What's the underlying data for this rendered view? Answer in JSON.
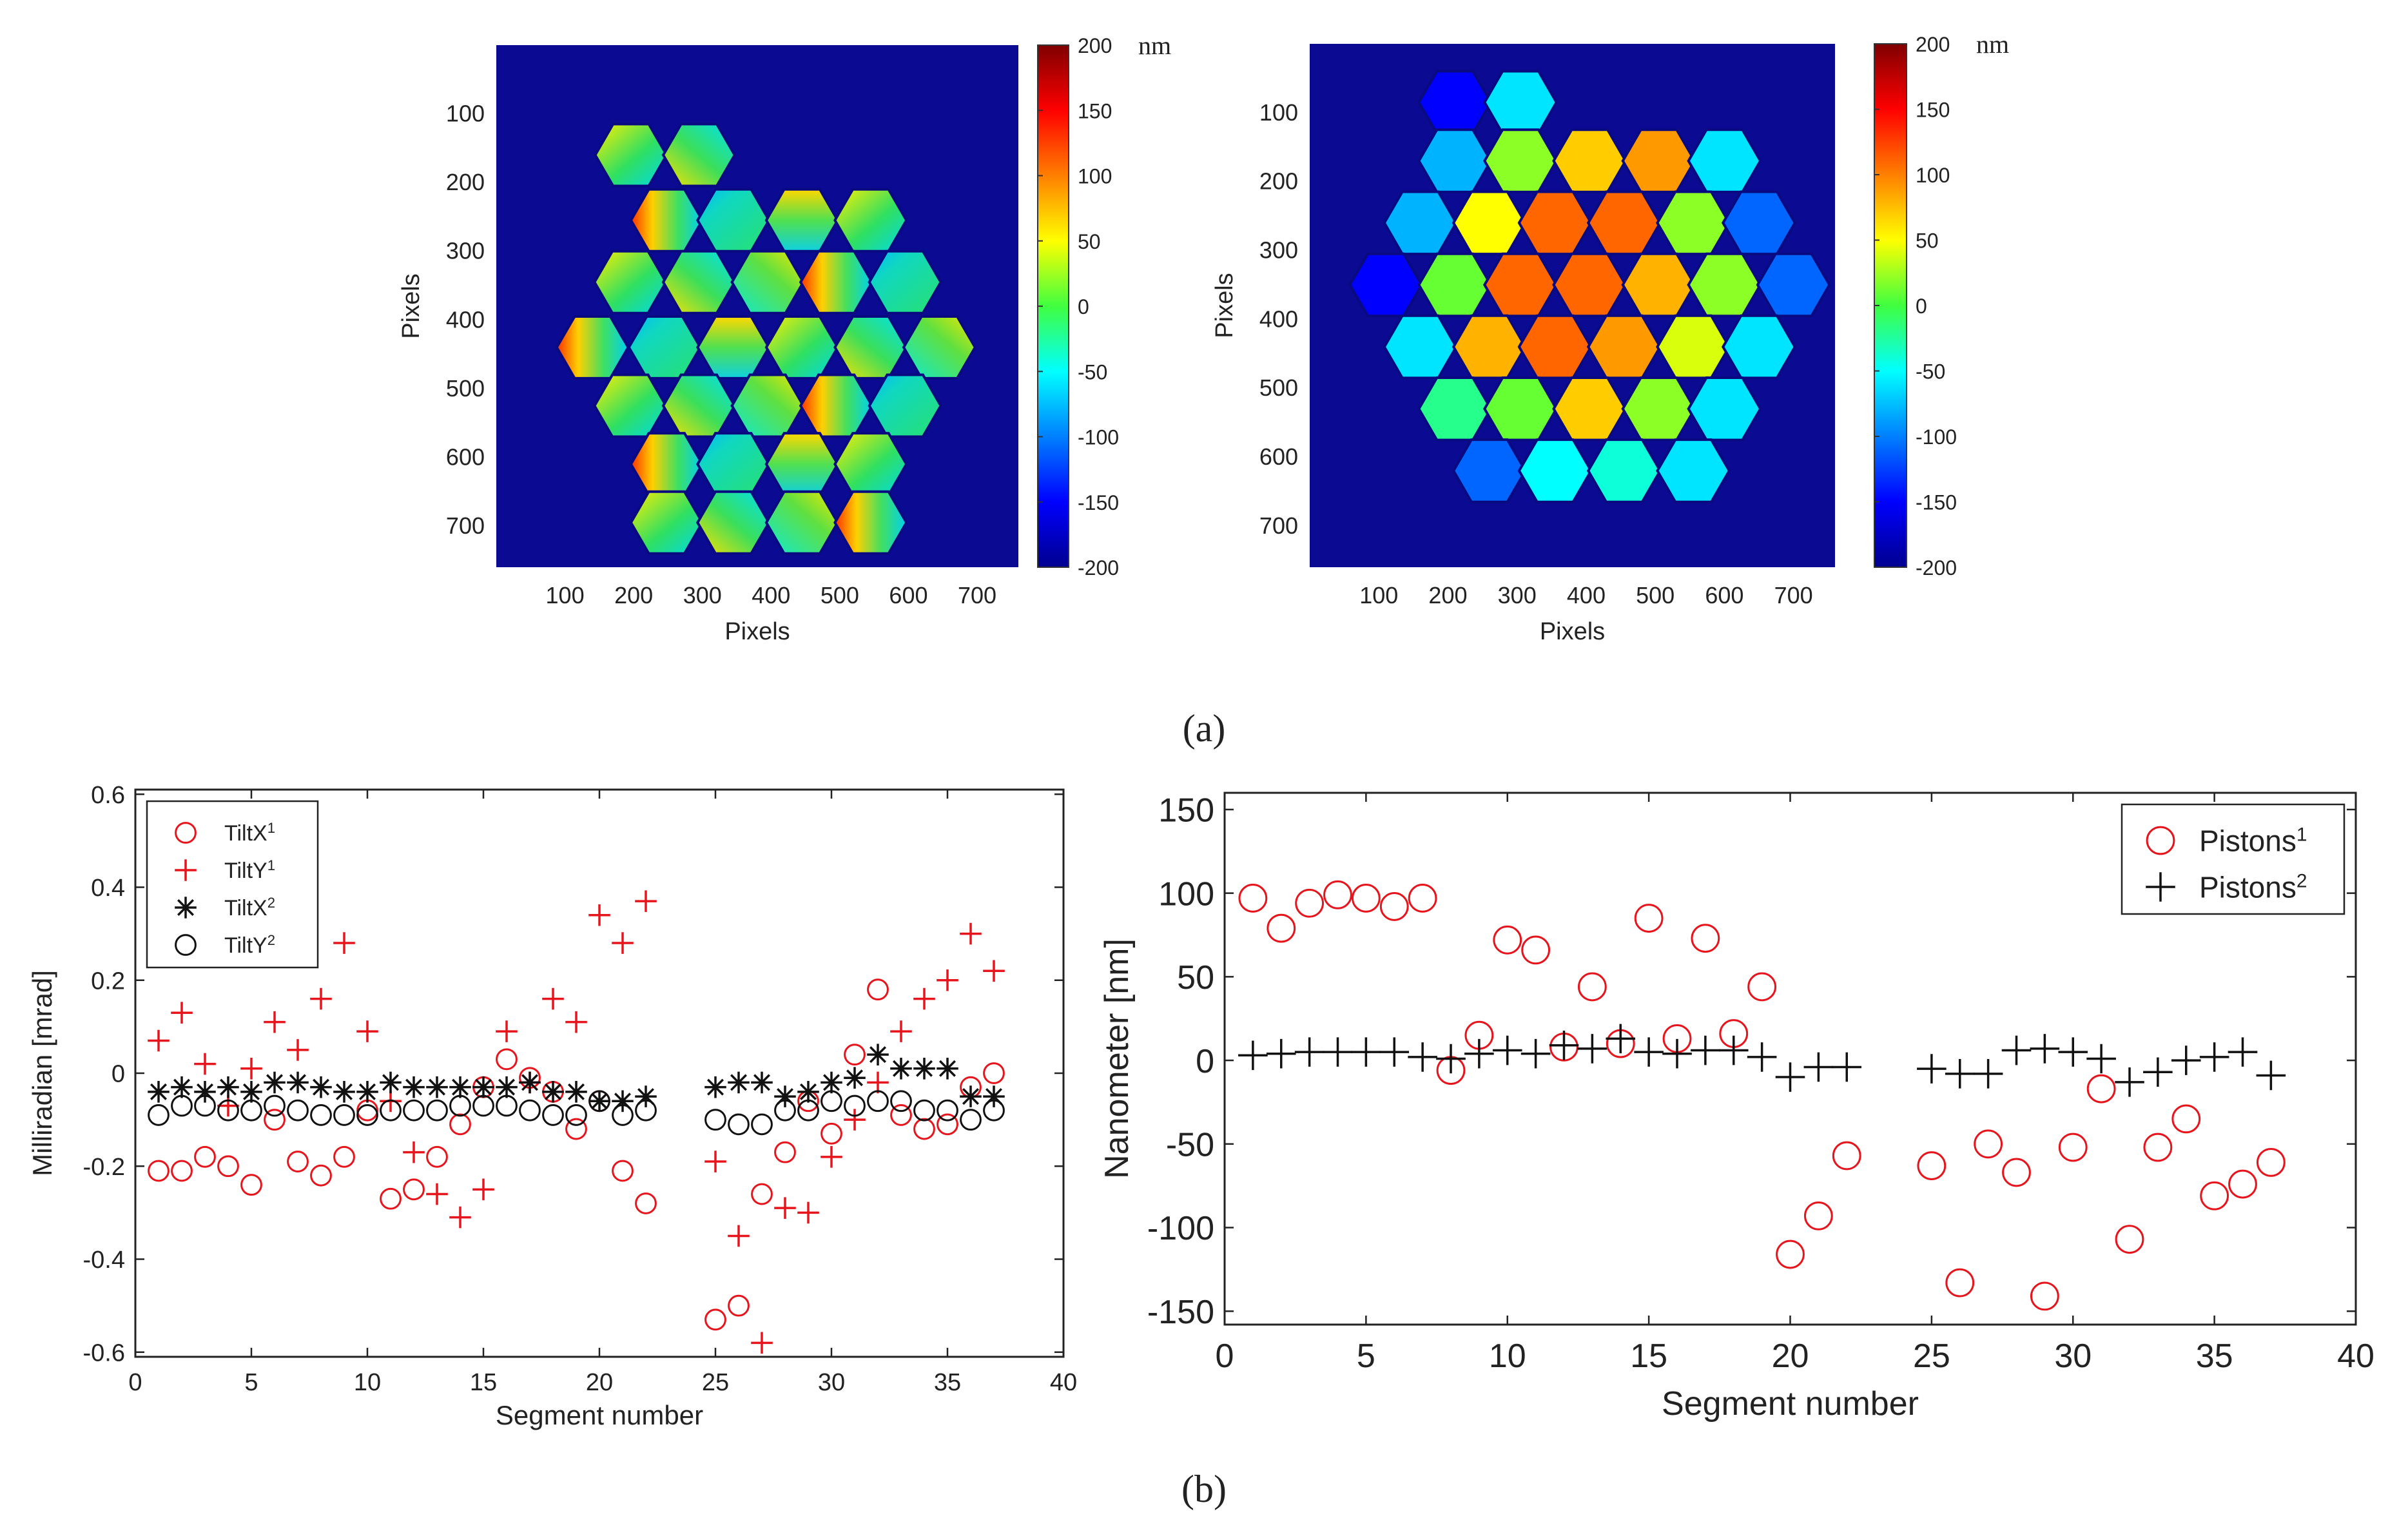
{
  "figure": {
    "panel_a_label": "(a)",
    "panel_b_label": "(b)"
  },
  "chart_data": [
    {
      "id": "map_tilt",
      "type": "heatmap",
      "description_kind": "segmented mirror surface map (tilt error)",
      "xlabel": "Pixels",
      "ylabel": "Pixels",
      "xticks": [
        100,
        200,
        300,
        400,
        500,
        600,
        700
      ],
      "yticks": [
        100,
        200,
        300,
        400,
        500,
        600,
        700
      ],
      "xlim": [
        0,
        760
      ],
      "ylim": [
        0,
        760
      ],
      "colorbar": {
        "label": "nm",
        "min": -200,
        "max": 200,
        "ticks": [
          200,
          150,
          100,
          50,
          0,
          -50,
          -100,
          -150,
          -200
        ]
      }
    },
    {
      "id": "map_piston",
      "type": "heatmap",
      "description_kind": "segmented mirror surface map (piston error)",
      "xlabel": "Pixels",
      "ylabel": "Pixels",
      "xticks": [
        100,
        200,
        300,
        400,
        500,
        600,
        700
      ],
      "yticks": [
        100,
        200,
        300,
        400,
        500,
        600,
        700
      ],
      "xlim": [
        0,
        760
      ],
      "ylim": [
        0,
        760
      ],
      "colorbar": {
        "label": "nm",
        "min": -200,
        "max": 200,
        "ticks": [
          200,
          150,
          100,
          50,
          0,
          -50,
          -100,
          -150,
          -200
        ]
      }
    },
    {
      "id": "tilts",
      "type": "scatter",
      "xlabel": "Segment number",
      "ylabel": "Milliradian [mrad]",
      "xlim": [
        0,
        40
      ],
      "ylim": [
        -0.61,
        0.61
      ],
      "xticks": [
        0,
        5,
        10,
        15,
        20,
        25,
        30,
        35,
        40
      ],
      "yticks": [
        0.6,
        0.4,
        0.2,
        0,
        -0.2,
        -0.4,
        -0.6
      ],
      "ytick_labels": [
        "0.6",
        "0.4",
        "0.2",
        "0",
        "-0.2",
        "-0.4",
        "-0.6"
      ],
      "legend_position": "top-left",
      "x": [
        1,
        2,
        3,
        4,
        5,
        6,
        7,
        8,
        9,
        10,
        11,
        12,
        13,
        14,
        15,
        16,
        17,
        18,
        19,
        20,
        21,
        22,
        25,
        26,
        27,
        28,
        29,
        30,
        31,
        32,
        33,
        34,
        35,
        36,
        37
      ],
      "series": [
        {
          "name": "TiltX",
          "sup": "1",
          "marker": "circle",
          "color": "#e8141c",
          "values": [
            -0.21,
            -0.21,
            -0.18,
            -0.2,
            -0.24,
            -0.1,
            -0.19,
            -0.22,
            -0.18,
            -0.08,
            -0.27,
            -0.25,
            -0.18,
            -0.11,
            -0.03,
            0.03,
            -0.01,
            -0.04,
            -0.12,
            -0.06,
            -0.21,
            -0.28,
            -0.53,
            -0.5,
            -0.26,
            -0.17,
            -0.06,
            -0.13,
            0.04,
            0.18,
            -0.09,
            -0.12,
            -0.11,
            -0.03,
            0.0
          ]
        },
        {
          "name": "TiltY",
          "sup": "1",
          "marker": "plus",
          "color": "#e8141c",
          "values": [
            0.07,
            0.13,
            0.02,
            -0.07,
            0.01,
            0.11,
            0.05,
            0.16,
            0.28,
            0.09,
            -0.06,
            -0.17,
            -0.26,
            -0.31,
            -0.25,
            0.09,
            -0.02,
            0.16,
            0.11,
            0.34,
            0.28,
            0.37,
            -0.19,
            -0.35,
            -0.58,
            -0.29,
            -0.3,
            -0.18,
            -0.1,
            -0.02,
            0.09,
            0.16,
            0.2,
            0.3,
            0.22
          ]
        },
        {
          "name": "TiltX",
          "sup": "2",
          "marker": "star",
          "color": "#111111",
          "values": [
            -0.04,
            -0.03,
            -0.04,
            -0.03,
            -0.04,
            -0.02,
            -0.02,
            -0.03,
            -0.04,
            -0.04,
            -0.02,
            -0.03,
            -0.03,
            -0.03,
            -0.03,
            -0.03,
            -0.02,
            -0.04,
            -0.04,
            -0.06,
            -0.06,
            -0.05,
            -0.03,
            -0.02,
            -0.02,
            -0.05,
            -0.04,
            -0.02,
            -0.01,
            0.04,
            0.01,
            0.01,
            0.01,
            -0.05,
            -0.05
          ]
        },
        {
          "name": "TiltY",
          "sup": "2",
          "marker": "circle",
          "color": "#111111",
          "values": [
            -0.09,
            -0.07,
            -0.07,
            -0.08,
            -0.08,
            -0.07,
            -0.08,
            -0.09,
            -0.09,
            -0.09,
            -0.08,
            -0.08,
            -0.08,
            -0.07,
            -0.07,
            -0.07,
            -0.08,
            -0.09,
            -0.09,
            -0.06,
            -0.09,
            -0.08,
            -0.1,
            -0.11,
            -0.11,
            -0.08,
            -0.08,
            -0.06,
            -0.07,
            -0.06,
            -0.06,
            -0.08,
            -0.08,
            -0.1,
            -0.08
          ]
        }
      ]
    },
    {
      "id": "pistons",
      "type": "scatter",
      "xlabel": "Segment number",
      "ylabel": "Nanometer [nm]",
      "xlim": [
        0,
        40
      ],
      "ylim": [
        -158,
        160
      ],
      "xticks": [
        0,
        5,
        10,
        15,
        20,
        25,
        30,
        35,
        40
      ],
      "yticks": [
        150,
        100,
        50,
        0,
        -50,
        -100,
        -150
      ],
      "ytick_labels": [
        "150",
        "100",
        "50",
        "0",
        "-50",
        "-100",
        "-150"
      ],
      "legend_position": "top-right",
      "x": [
        1,
        2,
        3,
        4,
        5,
        6,
        7,
        8,
        9,
        10,
        11,
        12,
        13,
        14,
        15,
        16,
        17,
        18,
        19,
        20,
        21,
        22,
        25,
        26,
        27,
        28,
        29,
        30,
        31,
        32,
        33,
        34,
        35,
        36,
        37
      ],
      "series": [
        {
          "name": "Pistons",
          "sup": "1",
          "marker": "circle",
          "color": "#e8141c",
          "values": [
            97,
            79,
            94,
            99,
            97,
            92,
            97,
            -6,
            15,
            72,
            66,
            8,
            44,
            10,
            85,
            13,
            73,
            16,
            44,
            -116,
            -93,
            -57,
            -63,
            -133,
            -50,
            -67,
            -141,
            -52,
            -17,
            -107,
            -52,
            -35,
            -81,
            -74,
            -61
          ]
        },
        {
          "name": "Pistons",
          "sup": "2",
          "marker": "plus",
          "color": "#111111",
          "values": [
            3,
            4,
            5,
            5,
            5,
            5,
            2,
            1,
            4,
            6,
            4,
            9,
            7,
            13,
            5,
            4,
            6,
            6,
            2,
            -10,
            -4,
            -4,
            -5,
            -8,
            -8,
            6,
            7,
            5,
            1,
            -13,
            -7,
            0,
            2,
            5,
            -9
          ]
        }
      ]
    }
  ]
}
